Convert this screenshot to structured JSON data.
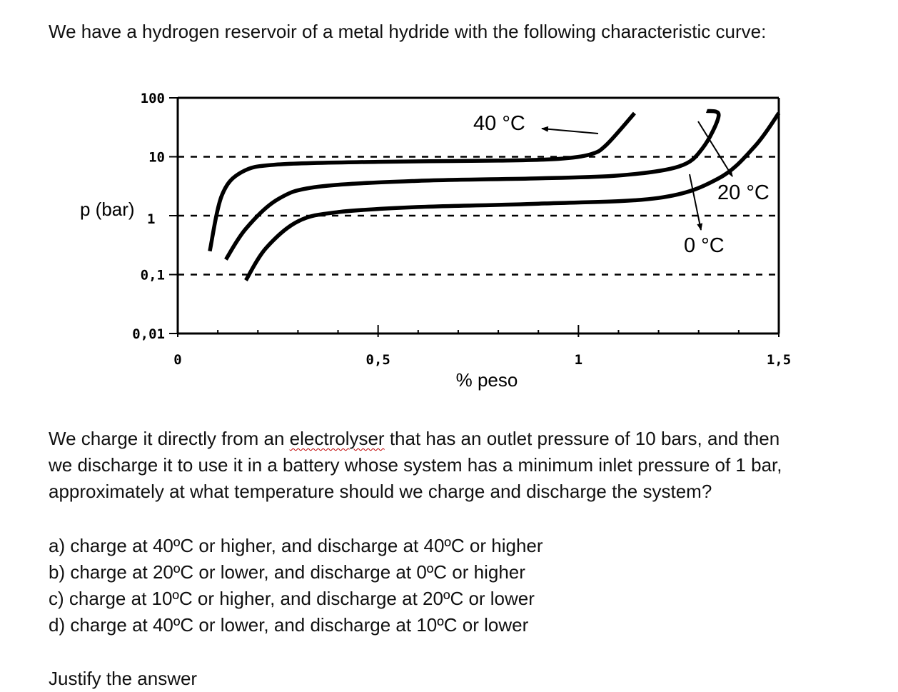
{
  "intro": "We have a hydrogen reservoir of a metal hydride with the following characteristic curve:",
  "question": {
    "line1_pre": "We charge it directly from an ",
    "line1_word": "electrolyser",
    "line1_post": " that has an outlet pressure of 10 bars, and then",
    "line2": "we discharge it to use it in a battery whose system has a minimum inlet pressure of 1 bar,",
    "line3": "approximately at what temperature should we charge and discharge the system?"
  },
  "options": [
    "a) charge at 40ºC or higher, and discharge at 40ºC or higher",
    "b) charge at 20ºC or lower, and discharge at 0ºC or higher",
    "c) charge at 10ºC or higher, and discharge at 20ºC or lower",
    "d) charge at 40ºC or lower, and discharge at 10ºC or lower"
  ],
  "justify": "Justify the answer",
  "chart_data": {
    "type": "line",
    "title": "",
    "xlabel": "% peso",
    "ylabel": "p (bar)",
    "xlim": [
      0,
      1.5
    ],
    "ylim": [
      0.01,
      100
    ],
    "y_scale": "log",
    "x_ticks": [
      "0",
      "0,5",
      "1",
      "1,5"
    ],
    "y_ticks": [
      "100",
      "10",
      "1",
      "0,1",
      "0,01"
    ],
    "grid": "dashed horizontal at 10, 1, 0.1",
    "annotations": [
      "40 °C",
      "20 °C",
      "0 °C"
    ],
    "series": [
      {
        "name": "40 °C",
        "x": [
          0.08,
          0.11,
          0.16,
          0.25,
          0.5,
          0.8,
          0.95,
          1.03,
          1.07,
          1.14
        ],
        "y": [
          0.25,
          2.2,
          5.5,
          7.4,
          8.2,
          8.6,
          9.2,
          11,
          16,
          55
        ]
      },
      {
        "name": "20 °C",
        "x": [
          0.12,
          0.17,
          0.25,
          0.35,
          0.6,
          0.9,
          1.1,
          1.25,
          1.31,
          1.35,
          1.32
        ],
        "y": [
          0.18,
          0.6,
          1.9,
          3.1,
          3.9,
          4.3,
          4.8,
          6.8,
          14,
          50,
          60
        ]
      },
      {
        "name": "0 °C",
        "x": [
          0.17,
          0.22,
          0.3,
          0.4,
          0.6,
          0.9,
          1.2,
          1.35,
          1.44,
          1.5
        ],
        "y": [
          0.08,
          0.28,
          0.8,
          1.15,
          1.4,
          1.6,
          2.0,
          4.3,
          15,
          55
        ]
      }
    ],
    "colors": {
      "curves": "#000000",
      "axes": "#000000"
    }
  }
}
